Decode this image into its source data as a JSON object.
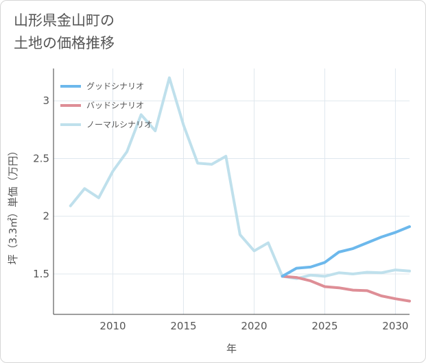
{
  "title_line1": "山形県金山町の",
  "title_line2": "土地の価格推移",
  "chart_data": {
    "type": "line",
    "xlabel": "年",
    "ylabel": "坪（3.3㎡）単価（万円）",
    "xlim": [
      2005.8,
      2031
    ],
    "ylim": [
      1.15,
      3.28
    ],
    "xticks": [
      2010,
      2015,
      2020,
      2025,
      2030
    ],
    "xtick_labels": [
      "2010",
      "2015",
      "2020",
      "2025",
      "2030"
    ],
    "yticks": [
      1.5,
      2,
      2.5,
      3
    ],
    "ytick_labels": [
      "1.5",
      "2",
      "2.5",
      "3"
    ],
    "grid": true,
    "legend_position": "top-left",
    "series": [
      {
        "name": "グッドシナリオ",
        "color": "#6cb8ec",
        "x": [
          2022,
          2023,
          2024,
          2025,
          2026,
          2027,
          2028,
          2029,
          2030,
          2031
        ],
        "y": [
          1.48,
          1.55,
          1.56,
          1.6,
          1.69,
          1.72,
          1.77,
          1.82,
          1.86,
          1.91
        ]
      },
      {
        "name": "バッドシナリオ",
        "color": "#de8e96",
        "x": [
          2022,
          2023,
          2024,
          2025,
          2026,
          2027,
          2028,
          2029,
          2030,
          2031
        ],
        "y": [
          1.48,
          1.47,
          1.44,
          1.39,
          1.38,
          1.36,
          1.355,
          1.31,
          1.285,
          1.265
        ]
      },
      {
        "name": "ノーマルシナリオ",
        "color": "#bfe0ec",
        "x": [
          2007,
          2008,
          2009,
          2010,
          2011,
          2012,
          2013,
          2014,
          2015,
          2016,
          2017,
          2018,
          2019,
          2020,
          2021,
          2022,
          2023,
          2024,
          2025,
          2026,
          2027,
          2028,
          2029,
          2030,
          2031
        ],
        "y": [
          2.09,
          2.24,
          2.16,
          2.39,
          2.56,
          2.88,
          2.74,
          3.2,
          2.79,
          2.46,
          2.45,
          2.52,
          1.84,
          1.7,
          1.77,
          1.48,
          1.46,
          1.49,
          1.48,
          1.51,
          1.5,
          1.515,
          1.51,
          1.535,
          1.525
        ]
      }
    ]
  }
}
